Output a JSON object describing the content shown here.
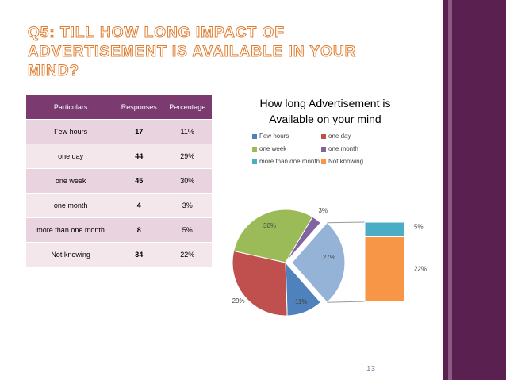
{
  "slide_title": "Q5: TILL HOW LONG IMPACT OF ADVERTISEMENT IS AVAILABLE IN YOUR MIND?",
  "table": {
    "header": [
      "Particulars",
      "Responses",
      "Percentage"
    ],
    "rows": [
      [
        "Few hours",
        "17",
        "11%"
      ],
      [
        "one day",
        "44",
        "29%"
      ],
      [
        "one week",
        "45",
        "30%"
      ],
      [
        "one month",
        "4",
        "3%"
      ],
      [
        "more than one month",
        "8",
        "5%"
      ],
      [
        "Not knowing",
        "34",
        "22%"
      ]
    ]
  },
  "chart_data": {
    "type": "pie-of-bar",
    "title": "How long Advertisement is Available on your mind",
    "categories": [
      "Few hours",
      "one day",
      "one week",
      "one month",
      "more than one month",
      "Not knowing"
    ],
    "values": [
      11,
      29,
      30,
      3,
      5,
      22
    ],
    "value_labels": [
      "11%",
      "29%",
      "30%",
      "3%",
      "5%",
      "22%"
    ],
    "colors": [
      "#4f81bd",
      "#c0504d",
      "#9bbb59",
      "#8064a2",
      "#4bacc6",
      "#f79646"
    ],
    "other": {
      "value": 27,
      "label": "27%",
      "color": "#95b3d7"
    }
  },
  "page_number": "13"
}
